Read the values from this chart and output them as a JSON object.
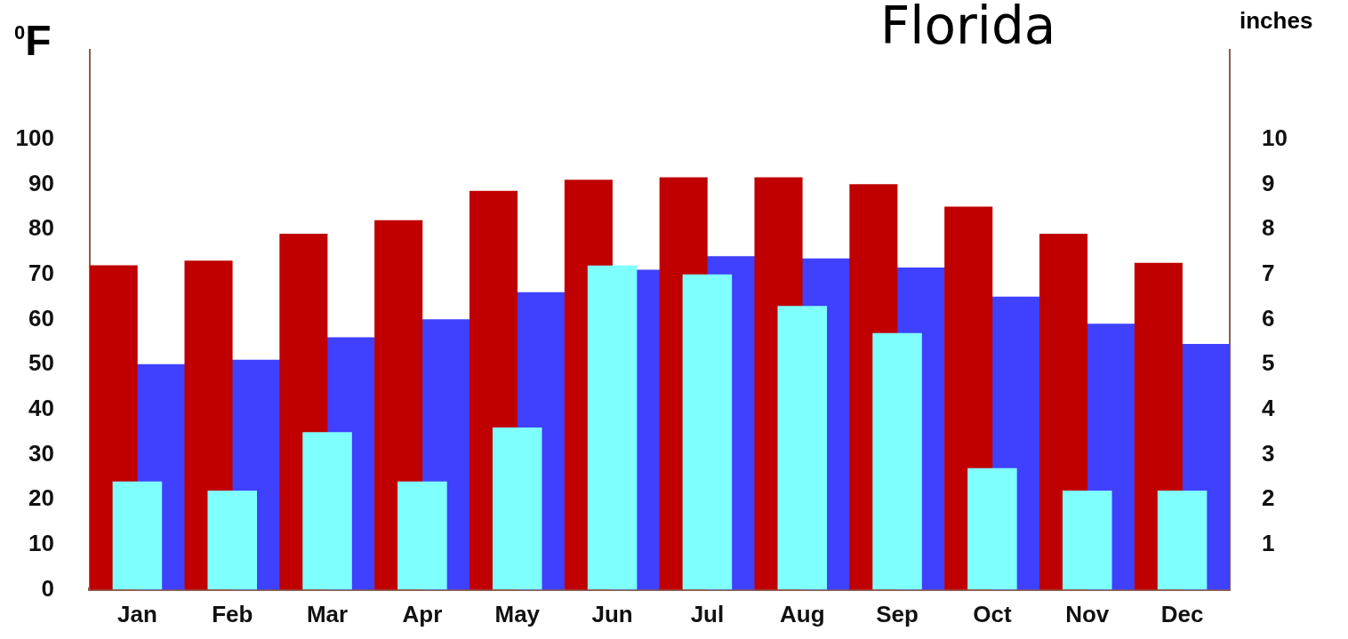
{
  "chart_data": {
    "type": "bar",
    "title": "Florida",
    "ylabel": "$^{0}$F",
    "y2label": "inches",
    "categories": [
      "Jan",
      "Feb",
      "Mar",
      "Apr",
      "May",
      "Jun",
      "Jul",
      "Aug",
      "Sep",
      "Oct",
      "Nov",
      "Dec"
    ],
    "series": [
      {
        "color": "#c00000",
        "values": [
          72,
          73,
          79,
          82,
          88.5,
          91,
          91.5,
          91.5,
          90,
          85,
          79,
          72.5
        ]
      },
      {
        "color": "#4040ff",
        "values": [
          50,
          51,
          56,
          60,
          66,
          71,
          74,
          73.5,
          71.5,
          65,
          59,
          54.5
        ]
      },
      {
        "color": "#80ffff",
        "axis": "y2",
        "values": [
          2.4,
          2.2,
          3.5,
          2.4,
          3.6,
          7.2,
          7.0,
          6.3,
          5.7,
          2.7,
          2.2,
          2.2
        ]
      }
    ],
    "ylim": [
      0,
      120
    ],
    "yticks": [
      0,
      10,
      20,
      30,
      40,
      50,
      60,
      70,
      80,
      90,
      100
    ],
    "y2lim": [
      0,
      12
    ],
    "y2ticks": [
      1,
      2,
      3,
      4,
      5,
      6,
      7,
      8,
      9,
      10
    ],
    "grid": false,
    "legend": false
  }
}
